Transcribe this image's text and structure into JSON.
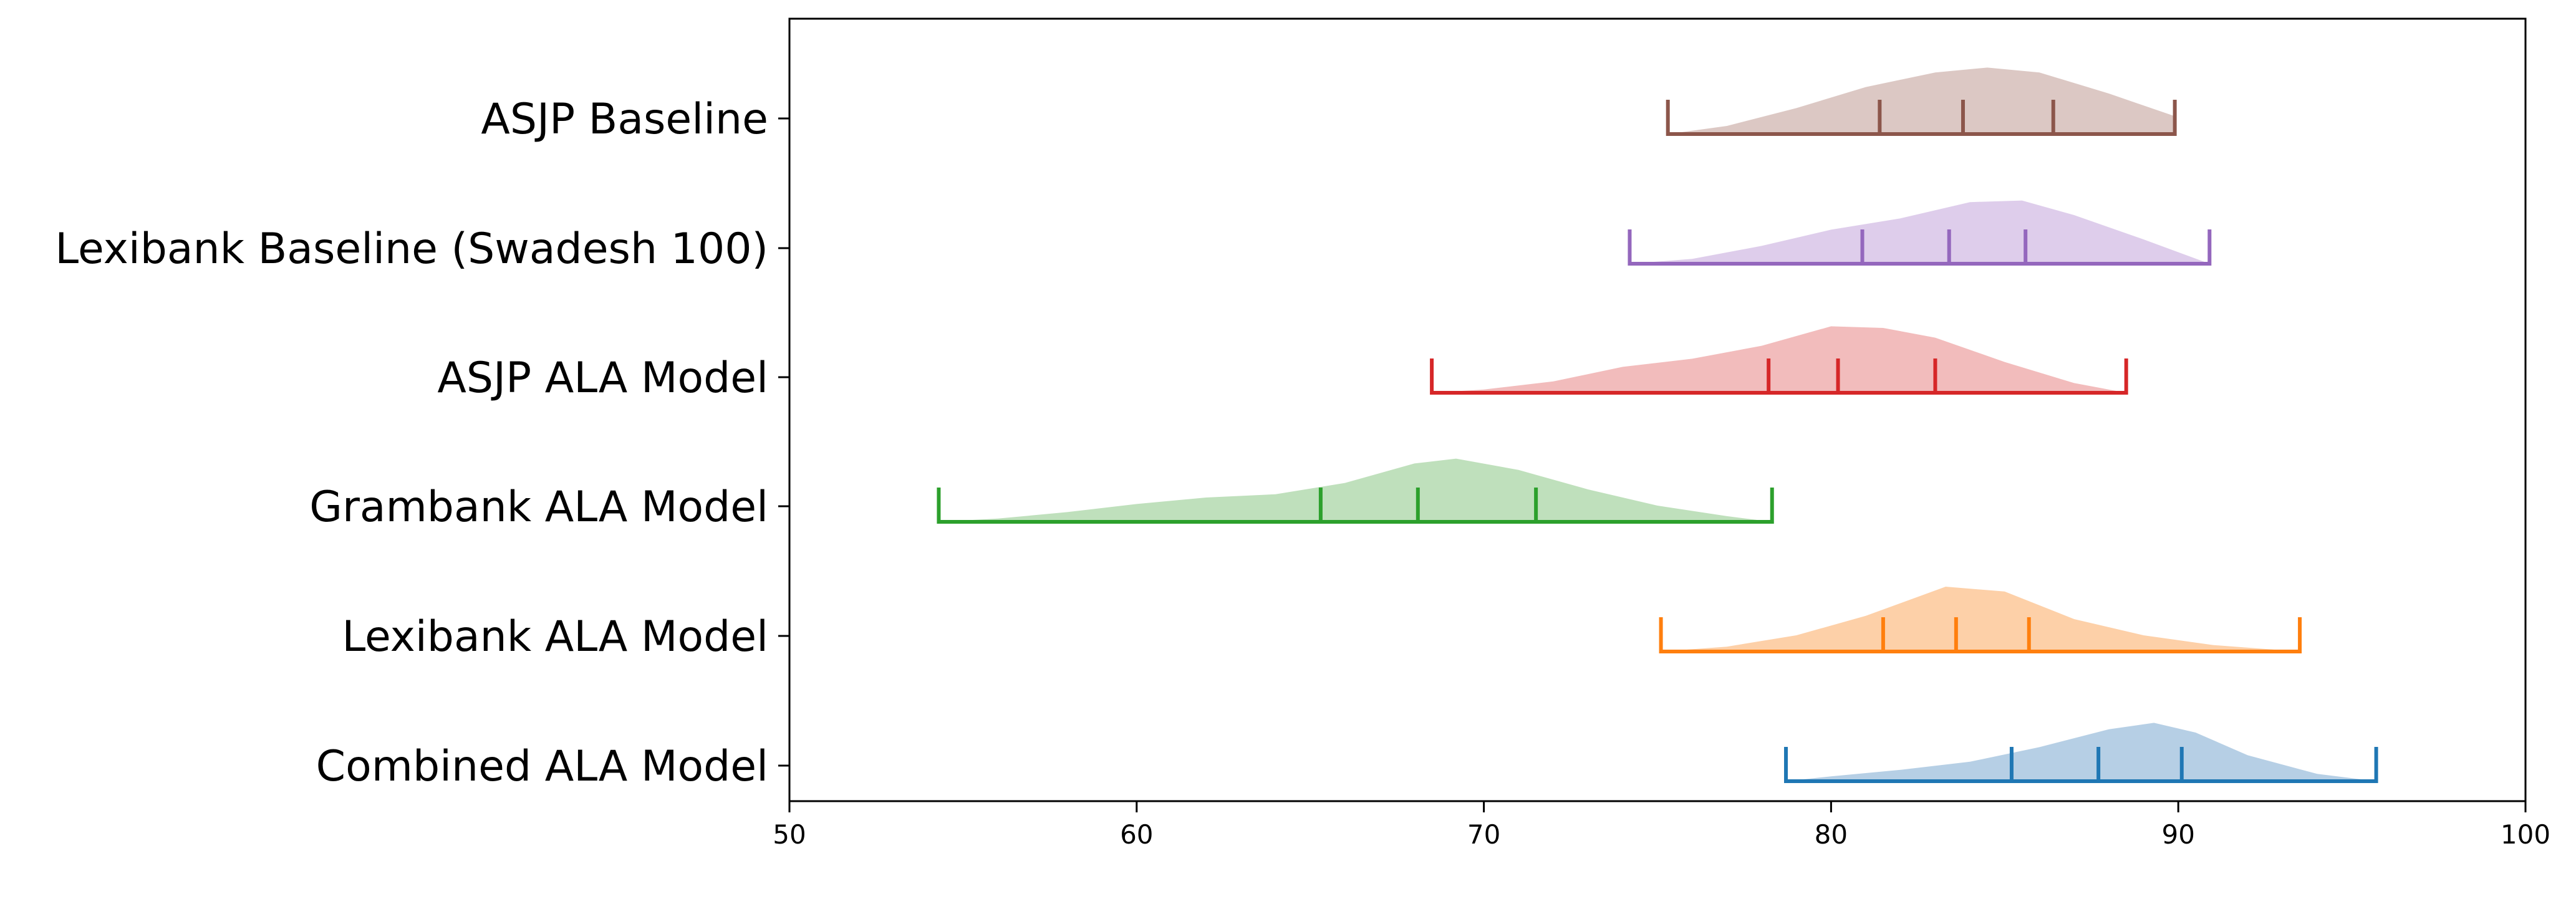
{
  "chart_data": {
    "type": "violin",
    "title": "",
    "xlabel": "",
    "ylabel": "",
    "xlim": [
      50,
      100
    ],
    "xticks": [
      50,
      60,
      70,
      80,
      90,
      100
    ],
    "grid": false,
    "legend": "none",
    "series": [
      {
        "name": "Combined ALA Model",
        "color": "#1f77b4",
        "fill": "#b6cfe5",
        "min": 78.7,
        "q1": 85.2,
        "median": 87.7,
        "q3": 90.1,
        "max": 95.7,
        "density": [
          [
            78.7,
            0.0
          ],
          [
            80,
            0.06
          ],
          [
            82,
            0.14
          ],
          [
            84,
            0.24
          ],
          [
            86,
            0.42
          ],
          [
            88,
            0.64
          ],
          [
            89.3,
            0.72
          ],
          [
            90.5,
            0.6
          ],
          [
            92,
            0.32
          ],
          [
            94,
            0.09
          ],
          [
            95.7,
            0.0
          ]
        ]
      },
      {
        "name": "Lexibank ALA Model",
        "color": "#ff7f0e",
        "fill": "#fdd0a8",
        "min": 75.1,
        "q1": 81.5,
        "median": 83.6,
        "q3": 85.7,
        "max": 93.5,
        "density": [
          [
            75.1,
            0.0
          ],
          [
            77,
            0.06
          ],
          [
            79,
            0.2
          ],
          [
            81,
            0.44
          ],
          [
            83.3,
            0.8
          ],
          [
            85,
            0.74
          ],
          [
            87,
            0.4
          ],
          [
            89,
            0.2
          ],
          [
            91,
            0.08
          ],
          [
            93.5,
            0.0
          ]
        ]
      },
      {
        "name": "Grambank ALA Model",
        "color": "#2ca02c",
        "fill": "#bfe0bc",
        "min": 54.3,
        "q1": 65.3,
        "median": 68.1,
        "q3": 71.5,
        "max": 78.3,
        "density": [
          [
            54.3,
            0.0
          ],
          [
            56,
            0.04
          ],
          [
            58,
            0.12
          ],
          [
            60,
            0.22
          ],
          [
            62,
            0.3
          ],
          [
            64,
            0.34
          ],
          [
            66,
            0.48
          ],
          [
            68,
            0.72
          ],
          [
            69.2,
            0.78
          ],
          [
            71,
            0.64
          ],
          [
            73,
            0.4
          ],
          [
            75,
            0.2
          ],
          [
            77,
            0.07
          ],
          [
            78.3,
            0.0
          ]
        ]
      },
      {
        "name": "ASJP ALA Model",
        "color": "#d62728",
        "fill": "#f2bcbc",
        "min": 68.5,
        "q1": 78.2,
        "median": 80.2,
        "q3": 83.0,
        "max": 88.5,
        "density": [
          [
            68.5,
            0.0
          ],
          [
            70,
            0.04
          ],
          [
            72,
            0.14
          ],
          [
            74,
            0.32
          ],
          [
            76,
            0.42
          ],
          [
            78,
            0.58
          ],
          [
            80,
            0.82
          ],
          [
            81.5,
            0.8
          ],
          [
            83,
            0.68
          ],
          [
            85,
            0.38
          ],
          [
            87,
            0.12
          ],
          [
            88.5,
            0.0
          ]
        ]
      },
      {
        "name": "Lexibank Baseline (Swadesh 100)",
        "color": "#9467bd",
        "fill": "#decdeb",
        "min": 74.2,
        "q1": 80.9,
        "median": 83.4,
        "q3": 85.6,
        "max": 90.9,
        "density": [
          [
            74.2,
            0.0
          ],
          [
            76,
            0.06
          ],
          [
            78,
            0.22
          ],
          [
            80,
            0.42
          ],
          [
            82,
            0.56
          ],
          [
            84,
            0.76
          ],
          [
            85.5,
            0.78
          ],
          [
            87,
            0.6
          ],
          [
            89,
            0.3
          ],
          [
            90.9,
            0.0
          ]
        ]
      },
      {
        "name": "ASJP Baseline",
        "color": "#8c564b",
        "fill": "#dcc8c4",
        "min": 75.3,
        "q1": 81.4,
        "median": 83.8,
        "q3": 86.4,
        "max": 89.9,
        "density": [
          [
            75.3,
            0.0
          ],
          [
            77,
            0.1
          ],
          [
            79,
            0.32
          ],
          [
            81,
            0.58
          ],
          [
            83,
            0.76
          ],
          [
            84.5,
            0.82
          ],
          [
            86,
            0.76
          ],
          [
            88,
            0.5
          ],
          [
            89.9,
            0.22
          ]
        ]
      }
    ]
  }
}
